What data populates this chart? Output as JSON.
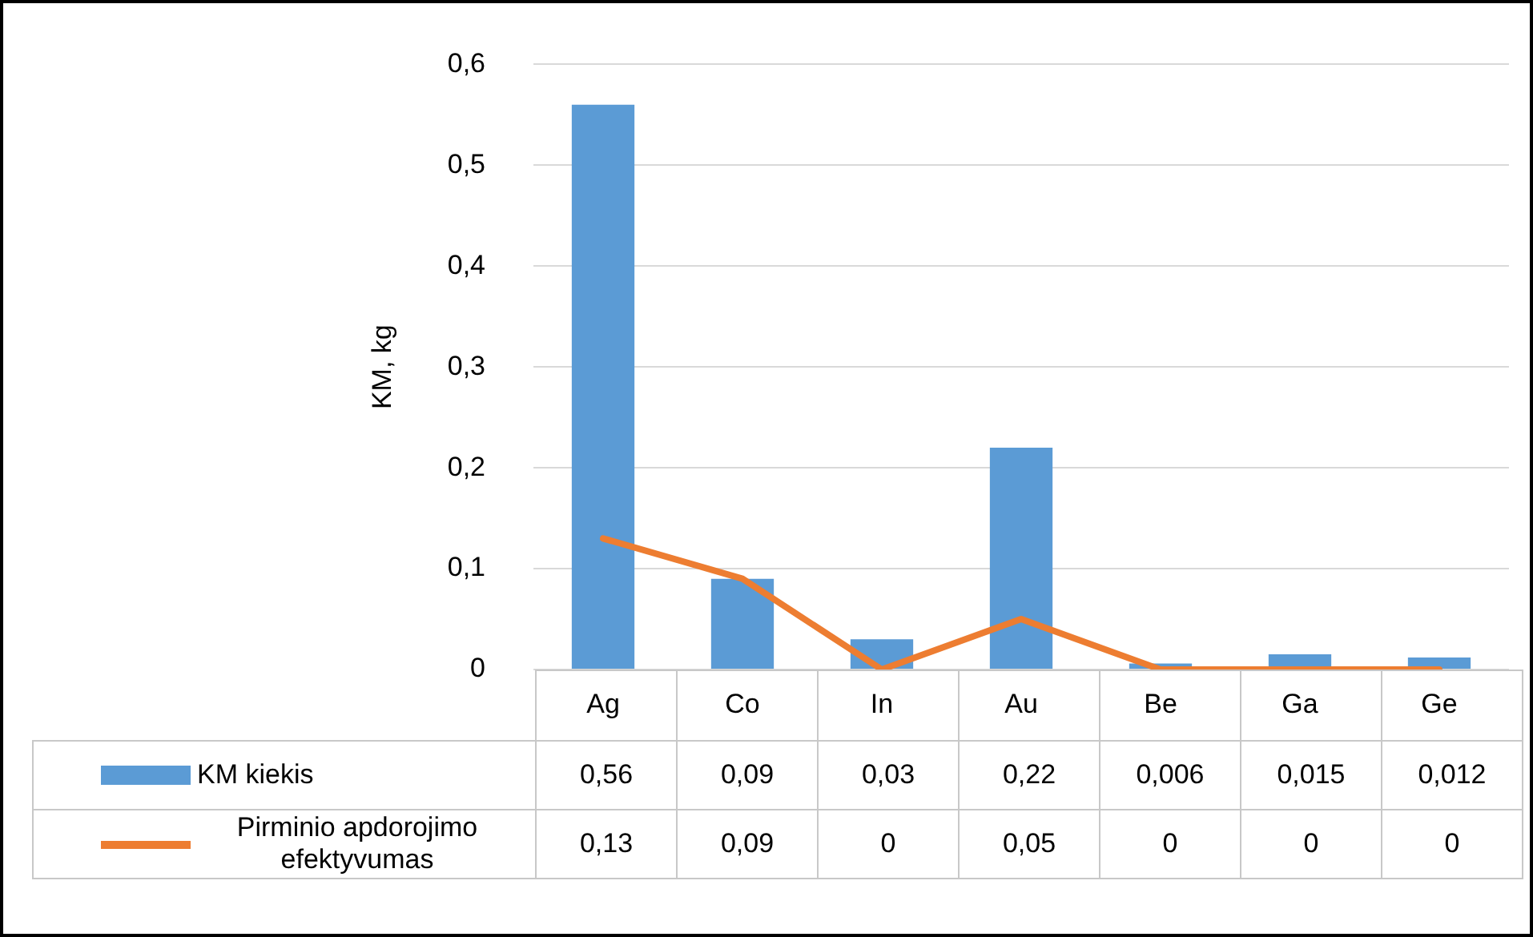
{
  "chart_data": {
    "type": "bar",
    "ylabel": "KM, kg",
    "categories": [
      "Ag",
      "Co",
      "In",
      "Au",
      "Be",
      "Ga",
      "Ge"
    ],
    "series": [
      {
        "name": "KM kiekis",
        "color": "#5b9bd5",
        "values": [
          0.56,
          0.09,
          0.03,
          0.22,
          0.006,
          0.015,
          0.012
        ],
        "value_labels": [
          "0,56",
          "0,09",
          "0,03",
          "0,22",
          "0,006",
          "0,015",
          "0,012"
        ]
      },
      {
        "name": "Pirminio apdorojimo efektyvumas",
        "type": "line",
        "color": "#ed7d31",
        "values": [
          0.13,
          0.09,
          0,
          0.05,
          0,
          0,
          0
        ],
        "value_labels": [
          "0,13",
          "0,09",
          "0",
          "0,05",
          "0",
          "0",
          "0"
        ]
      }
    ],
    "ylim": [
      0,
      0.6
    ],
    "yticks": [
      {
        "value": 0,
        "label": "0"
      },
      {
        "value": 0.1,
        "label": "0,1"
      },
      {
        "value": 0.2,
        "label": "0,2"
      },
      {
        "value": 0.3,
        "label": "0,3"
      },
      {
        "value": 0.4,
        "label": "0,4"
      },
      {
        "value": 0.5,
        "label": "0,5"
      },
      {
        "value": 0.6,
        "label": "0,6"
      }
    ],
    "grid": "y",
    "legend": "bottom",
    "marker": "none",
    "line_style": "solid"
  }
}
